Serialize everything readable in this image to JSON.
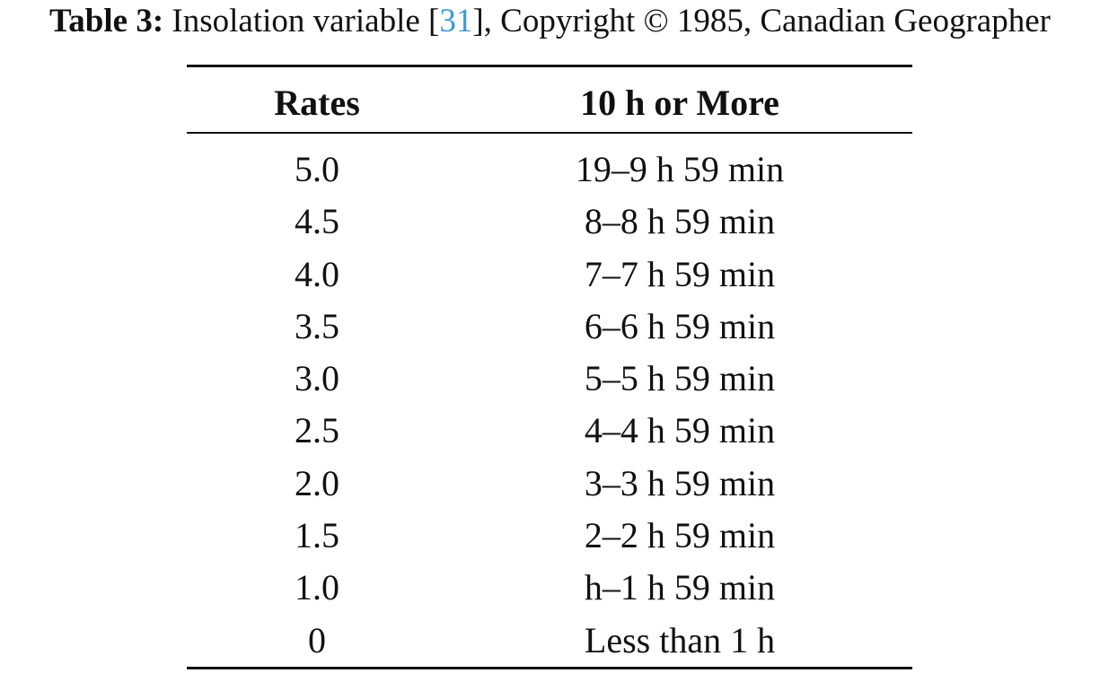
{
  "caption": {
    "label": "Table 3:",
    "text_before_ref": " Insolation variable [",
    "ref": "31",
    "text_after_ref": "], Copyright © 1985, Canadian Geographer"
  },
  "table": {
    "headers": [
      "Rates",
      "10 h or More"
    ],
    "rows": [
      [
        "5.0",
        "19–9 h 59 min"
      ],
      [
        "4.5",
        "8–8 h 59 min"
      ],
      [
        "4.0",
        "7–7 h 59 min"
      ],
      [
        "3.5",
        "6–6 h 59 min"
      ],
      [
        "3.0",
        "5–5 h 59 min"
      ],
      [
        "2.5",
        "4–4 h 59 min"
      ],
      [
        "2.0",
        "3–3 h 59 min"
      ],
      [
        "1.5",
        "2–2 h 59 min"
      ],
      [
        "1.0",
        "h–1 h 59 min"
      ],
      [
        "0",
        "Less than 1 h"
      ]
    ]
  },
  "colors": {
    "text": "#111111",
    "link": "#3b9bd6",
    "background": "#ffffff"
  }
}
